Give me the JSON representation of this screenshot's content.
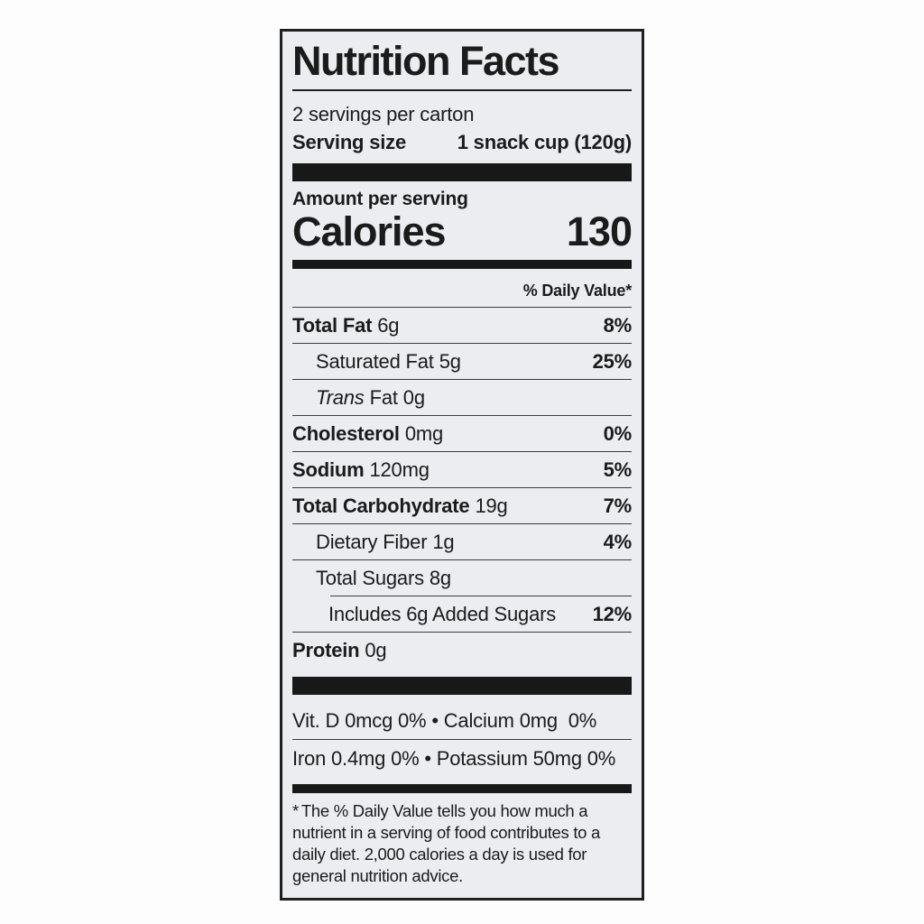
{
  "label": {
    "title": "Nutrition Facts",
    "servings_per_container": "2 servings per carton",
    "serving_size_label": "Serving size",
    "serving_size_value": "1 snack cup (120g)",
    "amount_per_serving": "Amount per serving",
    "calories_label": "Calories",
    "calories_value": "130",
    "daily_value_header": "% Daily Value*",
    "rows": [
      {
        "name": "Total Fat",
        "amount": "6g",
        "dv": "8%"
      },
      {
        "name": "Saturated Fat",
        "amount": "5g",
        "dv": "25%"
      },
      {
        "name_italic": "Trans",
        "name": "Fat",
        "amount": "0g",
        "dv": ""
      },
      {
        "name": "Cholesterol",
        "amount": "0mg",
        "dv": "0%"
      },
      {
        "name": "Sodium",
        "amount": "120mg",
        "dv": "5%"
      },
      {
        "name": "Total Carbohydrate",
        "amount": "19g",
        "dv": "7%"
      },
      {
        "name": "Dietary Fiber",
        "amount": "1g",
        "dv": "4%"
      },
      {
        "name": "Total Sugars",
        "amount": "8g",
        "dv": ""
      },
      {
        "name": "Includes 6g Added Sugars",
        "amount": "",
        "dv": "12%"
      },
      {
        "name": "Protein",
        "amount": "0g",
        "dv": ""
      }
    ],
    "micronutrient_lines": [
      "Vit. D 0mcg 0% • Calcium 0mg  0%",
      "Iron 0.4mg 0% • Potassium 50mg 0%"
    ],
    "footnote_marker": "*",
    "footnote_text": "The % Daily Value tells you how much a nutrient in a serving of food contributes to a daily diet. 2,000 calories a day is used for general nutrition advice.",
    "colors": {
      "page_bg": "#fdfdfd",
      "label_bg": "#ebedf1",
      "ink": "#1b1b1b"
    }
  }
}
